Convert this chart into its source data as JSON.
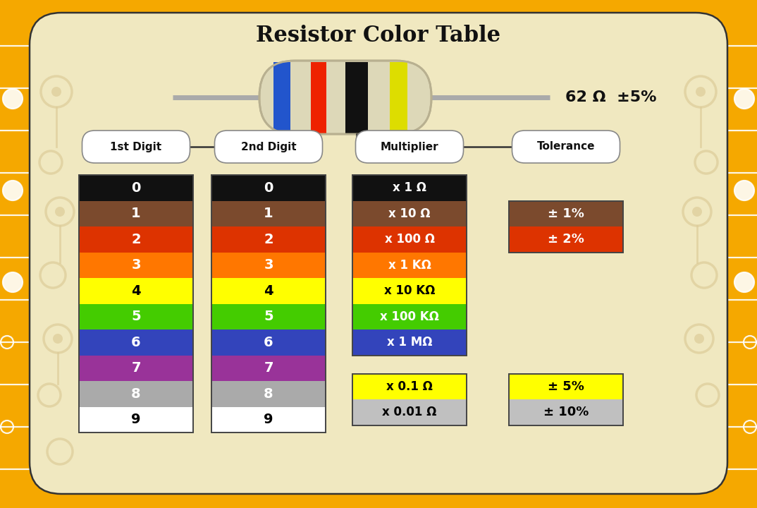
{
  "title": "Resistor Color Table",
  "resistor_label": "62 Ω  ±5%",
  "bg_color": "#F0E8C0",
  "border_color": "#F5A800",
  "colors": [
    "#111111",
    "#7B4A2D",
    "#DD3300",
    "#FF7700",
    "#FFFF00",
    "#44CC00",
    "#3344BB",
    "#993399",
    "#AAAAAA",
    "#FFFFFF"
  ],
  "digit_text_colors": [
    "#FFFFFF",
    "#FFFFFF",
    "#FFFFFF",
    "#FFFFFF",
    "#000000",
    "#FFFFFF",
    "#FFFFFF",
    "#FFFFFF",
    "#FFFFFF",
    "#000000"
  ],
  "digits": [
    "0",
    "1",
    "2",
    "3",
    "4",
    "5",
    "6",
    "7",
    "8",
    "9"
  ],
  "multiplier_colors": [
    "#111111",
    "#7B4A2D",
    "#DD3300",
    "#FF7700",
    "#FFFF00",
    "#44CC00",
    "#3344BB"
  ],
  "multiplier_texts": [
    "x 1 Ω",
    "x 10 Ω",
    "x 100 Ω",
    "x 1 KΩ",
    "x 10 KΩ",
    "x 100 KΩ",
    "x 1 MΩ"
  ],
  "multiplier_text_colors": [
    "#FFFFFF",
    "#FFFFFF",
    "#FFFFFF",
    "#FFFFFF",
    "#000000",
    "#FFFFFF",
    "#FFFFFF"
  ],
  "mult_extra_colors": [
    "#FFFF00",
    "#C0C0C0"
  ],
  "mult_extra_texts": [
    "x 0.1 Ω",
    "x 0.01 Ω"
  ],
  "mult_extra_text_colors": [
    "#000000",
    "#000000"
  ],
  "tol_upper_color": "#7B4A2D",
  "tol_upper_text": "± 1%",
  "tol_upper_text_color": "#FFFFFF",
  "tol_lower_color": "#DD3300",
  "tol_lower_text": "± 2%",
  "tol_lower_text_color": "#FFFFFF",
  "tol_extra_colors": [
    "#FFFF00",
    "#C0C0C0"
  ],
  "tol_extra_texts": [
    "± 5%",
    "± 10%"
  ],
  "tol_extra_text_colors": [
    "#000000",
    "#000000"
  ],
  "col_labels": [
    "1st Digit",
    "2nd Digit",
    "Multiplier",
    "Tolerance"
  ],
  "resistor_body_color": "#DDD8B8",
  "resistor_body_edge": "#B8B090",
  "lead_color": "#AAAAAA",
  "line_color": "#333333",
  "pill_bg": "#FFFFFF",
  "pill_edge": "#888888"
}
